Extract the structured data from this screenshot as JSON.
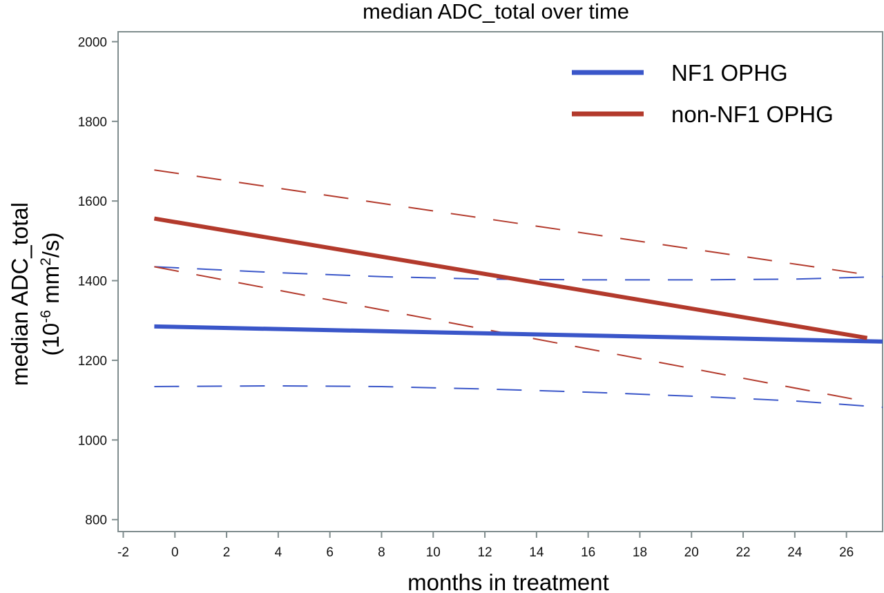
{
  "chart_data": {
    "type": "line",
    "title": "median ADC_total over time",
    "xlabel": "months in treatment",
    "ylabel_line1": "median ADC_total",
    "ylabel_line2_prefix": "(10",
    "ylabel_line2_exp1": "-6",
    "ylabel_line2_mid": " mm",
    "ylabel_line2_exp2": "2",
    "ylabel_line2_suffix": "/s)",
    "xlim": [
      -2.2,
      27.4
    ],
    "ylim": [
      770,
      2025
    ],
    "xticks": [
      -2,
      0,
      2,
      4,
      6,
      8,
      10,
      12,
      14,
      16,
      18,
      20,
      22,
      24,
      26
    ],
    "xtick_labels": [
      "-2",
      "0",
      "2",
      "4",
      "6",
      "8",
      "10",
      "12",
      "14",
      "16",
      "18",
      "20",
      "22",
      "24",
      "26"
    ],
    "yticks": [
      800,
      1000,
      1200,
      1400,
      1600,
      1800,
      2000
    ],
    "ytick_labels": [
      "800",
      "1000",
      "1200",
      "1400",
      "1600",
      "1800",
      "2000"
    ],
    "grid": false,
    "legend_position": "top-right",
    "series": [
      {
        "name": "NF1 OPHG",
        "color": "#3a56c9",
        "style": "solid",
        "x": [
          -0.8,
          27.4
        ],
        "y": [
          1285,
          1247
        ]
      },
      {
        "name": "non-NF1 OPHG",
        "color": "#b33a2c",
        "style": "solid",
        "x": [
          -0.8,
          26.8
        ],
        "y": [
          1556,
          1256
        ]
      },
      {
        "color": "#3a56c9",
        "style": "dashed",
        "x": [
          -0.8,
          4,
          8,
          12,
          16,
          20,
          24,
          27.4
        ],
        "y": [
          1435,
          1420,
          1410,
          1404,
          1402,
          1402,
          1404,
          1410
        ]
      },
      {
        "color": "#3a56c9",
        "style": "dashed",
        "x": [
          -0.8,
          4,
          8,
          12,
          16,
          20,
          24,
          27.4
        ],
        "y": [
          1134,
          1136,
          1134,
          1128,
          1120,
          1110,
          1098,
          1082
        ]
      },
      {
        "color": "#b33a2c",
        "style": "dashed",
        "x": [
          -0.8,
          26.8
        ],
        "y": [
          1678,
          1415
        ]
      },
      {
        "color": "#b33a2c",
        "style": "dashed",
        "x": [
          -0.8,
          26.8
        ],
        "y": [
          1435,
          1096
        ]
      }
    ]
  }
}
